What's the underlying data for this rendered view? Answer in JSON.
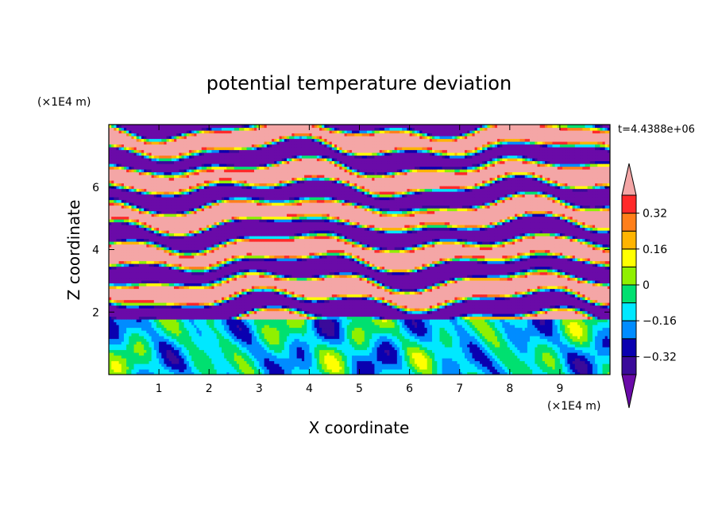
{
  "chart_data": {
    "type": "heatmap",
    "title": "potential temperature deviation",
    "xlabel": "X coordinate",
    "ylabel": "Z coordinate",
    "x_unit": "(×1E4 m)",
    "y_unit": "(×1E4 m)",
    "time_label": "t=4.4388e+06",
    "xlim": [
      0,
      10
    ],
    "ylim": [
      0,
      8
    ],
    "x_ticks": [
      1,
      2,
      3,
      4,
      5,
      6,
      7,
      8,
      9
    ],
    "y_ticks": [
      2,
      4,
      6
    ],
    "colorbar": {
      "levels": [
        -0.4,
        -0.32,
        -0.24,
        -0.16,
        -0.08,
        0,
        0.08,
        0.16,
        0.24,
        0.32,
        0.4
      ],
      "labels": [
        "0.32",
        "0.16",
        "0",
        "−0.16",
        "−0.32"
      ],
      "label_values": [
        0.32,
        0.16,
        0,
        -0.16,
        -0.32
      ],
      "colors_high_to_low": [
        "#f4a6a6",
        "#ff2a2a",
        "#ff7f1a",
        "#ffb400",
        "#ffff00",
        "#90f000",
        "#00e070",
        "#00e8ff",
        "#008cff",
        "#0a00b0",
        "#3a0a9a",
        "#6a0aa8"
      ],
      "under_color": "#6a0aa8",
      "over_color": "#f4a6a6"
    },
    "bands_z": [
      {
        "z0": 0.0,
        "z1": 1.75,
        "field": "turbulent boundary layer, mostly 0 to -0.16 with warm plumes"
      },
      {
        "z0": 1.75,
        "z1": 8.0,
        "field": "alternating layers of > 0.4 and < -0.4"
      }
    ]
  }
}
